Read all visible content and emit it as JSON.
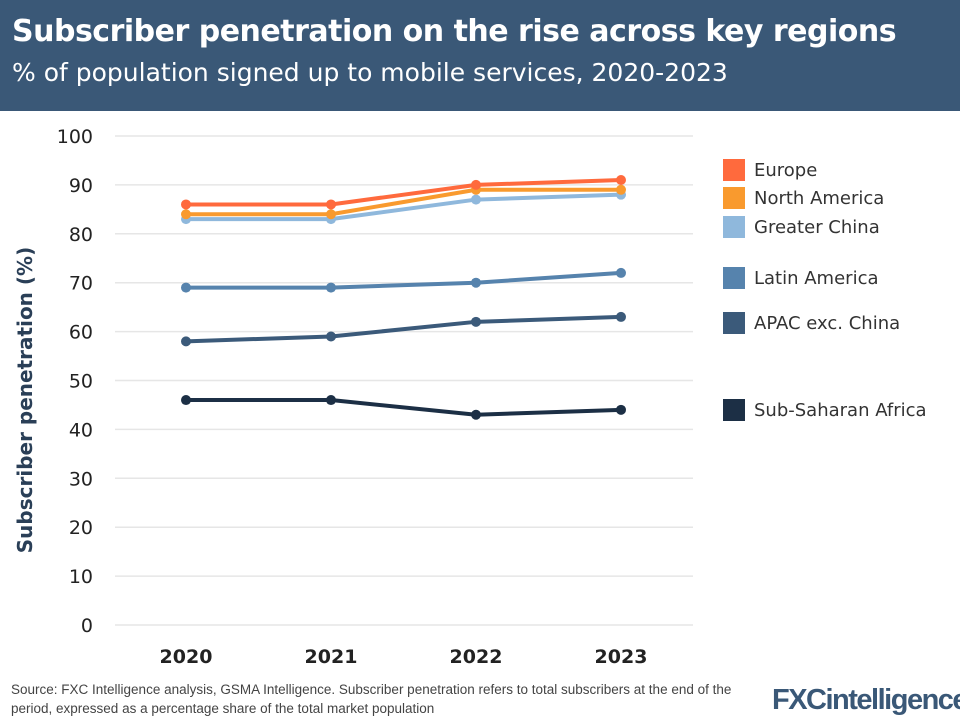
{
  "header": {
    "title": "Subscriber penetration on the rise across key regions",
    "subtitle": "% of population signed up to mobile services, 2020-2023"
  },
  "footer": {
    "source": "Source: FXC Intelligence analysis, GSMA Intelligence. Subscriber penetration refers to total subscribers at the end of the period, expressed as a percentage share of the total market population",
    "logo": "FXCintelligence"
  },
  "chart_data": {
    "type": "line",
    "ylabel": "Subscriber penetration (%)",
    "ylim": [
      0,
      100
    ],
    "yticks": [
      0,
      10,
      20,
      30,
      40,
      50,
      60,
      70,
      80,
      90,
      100
    ],
    "categories": [
      "2020",
      "2021",
      "2022",
      "2023"
    ],
    "grid": true,
    "legend": "right",
    "series": [
      {
        "name": "Europe",
        "color": "#ff6a3d",
        "values": [
          86,
          86,
          90,
          91
        ]
      },
      {
        "name": "North America",
        "color": "#f99a2e",
        "values": [
          84,
          84,
          89,
          89
        ]
      },
      {
        "name": "Greater China",
        "color": "#8fb8dc",
        "values": [
          83,
          83,
          87,
          88
        ]
      },
      {
        "name": "Latin America",
        "color": "#5683ad",
        "values": [
          69,
          69,
          70,
          72
        ]
      },
      {
        "name": "APAC exc. China",
        "color": "#3b5a7a",
        "values": [
          58,
          59,
          62,
          63
        ]
      },
      {
        "name": "Sub-Saharan Africa",
        "color": "#1c2f45",
        "values": [
          46,
          46,
          43,
          44
        ]
      }
    ]
  }
}
